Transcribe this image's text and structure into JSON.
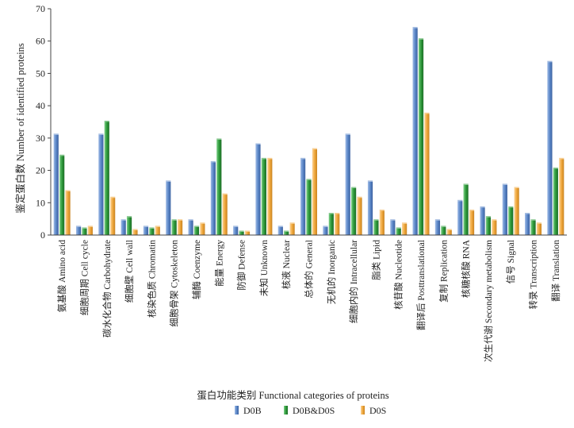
{
  "chart_data": {
    "type": "bar",
    "title": "",
    "xlabel": "蛋白功能类别 Functional categories of proteins",
    "ylabel": "鉴定蛋白数 Number of identified proteins",
    "ylim": [
      0,
      70
    ],
    "yticks": [
      0,
      10,
      20,
      30,
      40,
      50,
      60,
      70
    ],
    "grid": false,
    "legend_position": "bottom-center",
    "categories": [
      "氨基酸 Amino acid",
      "细胞周期 Cell cycle",
      "碳水化合物 Carbohydrate",
      "细胞壁 Cell wall",
      "核染色质 Chromatin",
      "细胞骨架 Cytoskeleton",
      "辅酶 Coenzyme",
      "能量 Energy",
      "防御 Defense",
      "未知 Unknown",
      "核液 Nuclear",
      "总体的 General",
      "无机的 Inorganic",
      "细胞内的 Intracellular",
      "脂类 Lipid",
      "核苷酸 Nucleotide",
      "翻译后 Posttranslational",
      "复制 Replication",
      "核糖核酸 RNA",
      "次生代谢 Secondary metabolism",
      "信号 Signal",
      "转录 Transcription",
      "翻译 Translation"
    ],
    "series": [
      {
        "name": "D0B",
        "color": "#5b87c8",
        "values": [
          31,
          2.5,
          31,
          4.5,
          2.5,
          16.5,
          4.5,
          22.5,
          2.5,
          28,
          2.5,
          23.5,
          2.5,
          31,
          16.5,
          4.5,
          64,
          4.5,
          10.5,
          8.5,
          15.5,
          6.5,
          53.5
        ]
      },
      {
        "name": "D0B&D0S",
        "color": "#2e9a3a",
        "values": [
          24.5,
          2,
          35,
          5.5,
          2,
          4.5,
          2.5,
          29.5,
          1,
          23.5,
          1,
          17,
          6.5,
          14.5,
          4.5,
          2,
          60.5,
          2.5,
          15.5,
          5.5,
          8.5,
          4.5,
          20.5
        ]
      },
      {
        "name": "D0S",
        "color": "#f0a83c",
        "values": [
          13.5,
          2.5,
          11.5,
          1.5,
          2.5,
          4.5,
          3.5,
          12.5,
          1,
          23.5,
          3.5,
          26.5,
          6.5,
          11.5,
          7.5,
          3.5,
          37.5,
          1.5,
          7.5,
          4.5,
          14.5,
          3.5,
          23.5
        ]
      }
    ]
  }
}
